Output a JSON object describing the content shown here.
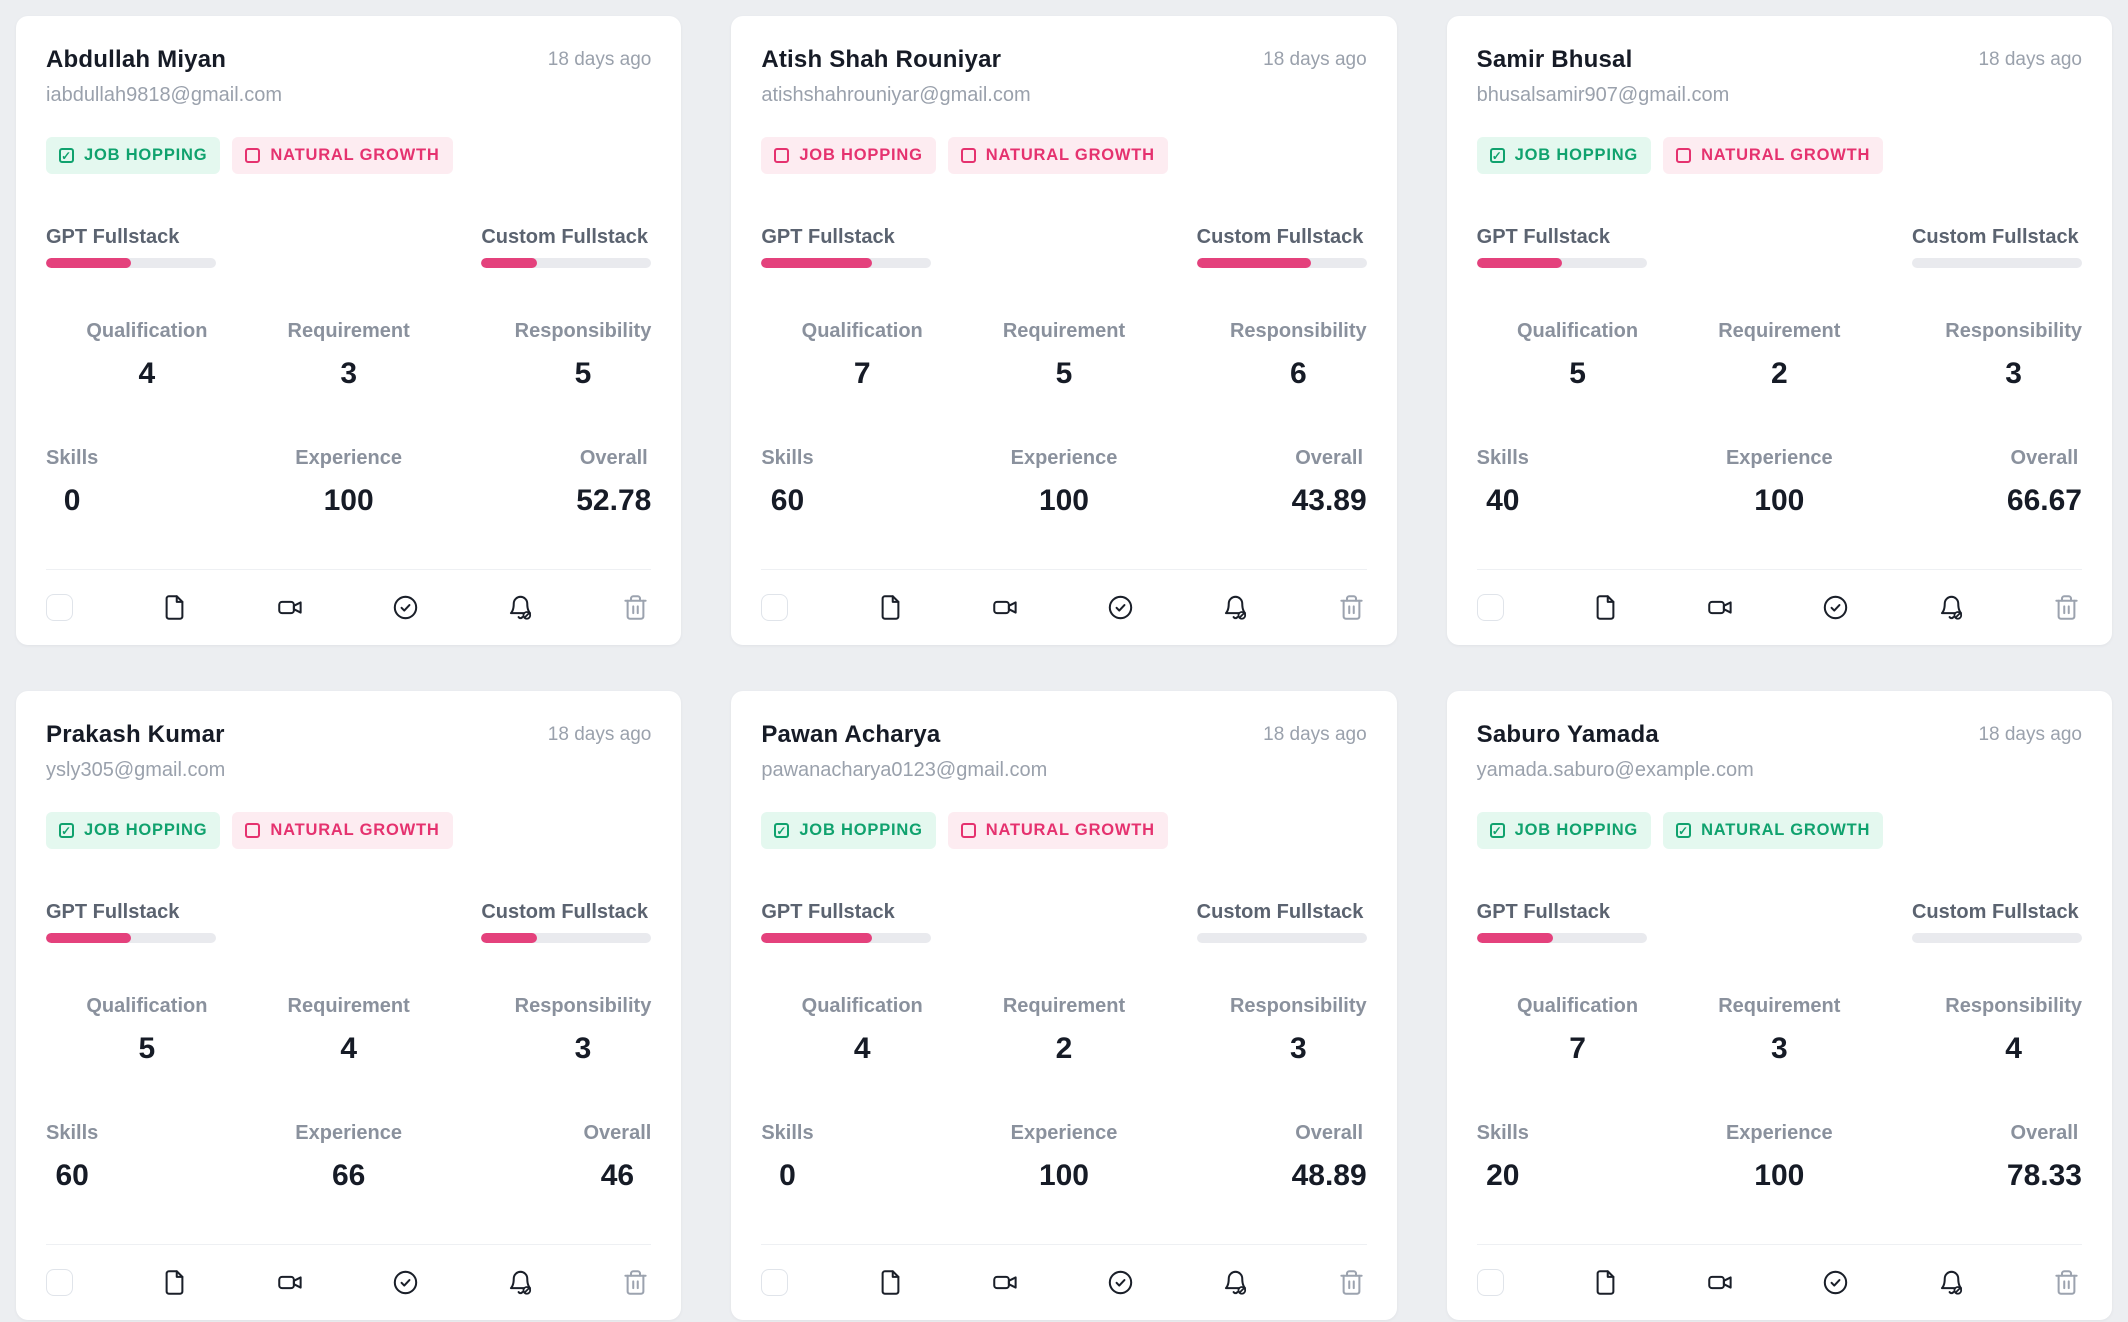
{
  "page": {
    "background": "#eceef1",
    "card_background": "#ffffff"
  },
  "colors": {
    "accent_pink": "#e4417c",
    "badge_green_text": "#10a26e",
    "badge_green_bg": "#e4f8ef",
    "badge_pink_text": "#e5326f",
    "badge_pink_bg": "#fdecf1",
    "bar_track": "#e9eaee"
  },
  "labels": {
    "gpt_bar": "GPT Fullstack",
    "custom_bar": "Custom Fullstack",
    "stats": {
      "qualification": "Qualification",
      "requirement": "Requirement",
      "responsibility": "Responsibility",
      "skills": "Skills",
      "experience": "Experience",
      "overall": "Overall"
    }
  },
  "footer_icons": [
    "select-checkbox",
    "file",
    "video",
    "check-circle",
    "bell-off",
    "trash"
  ],
  "cards": [
    {
      "name": "Abdullah Miyan",
      "email": "iabdullah9818@gmail.com",
      "time": "18 days ago",
      "badges": [
        {
          "label": "JOB HOPPING",
          "variant": "green",
          "checked": true
        },
        {
          "label": "NATURAL GROWTH",
          "variant": "pink",
          "checked": false
        }
      ],
      "bars": {
        "gpt": 50,
        "custom": 33
      },
      "stats": {
        "qualification": "4",
        "requirement": "3",
        "responsibility": "5",
        "skills": "0",
        "experience": "100",
        "overall": "52.78"
      }
    },
    {
      "name": "Atish Shah Rouniyar",
      "email": "atishshahrouniyar@gmail.com",
      "time": "18 days ago",
      "badges": [
        {
          "label": "JOB HOPPING",
          "variant": "pink",
          "checked": false
        },
        {
          "label": "NATURAL GROWTH",
          "variant": "pink",
          "checked": false
        }
      ],
      "bars": {
        "gpt": 65,
        "custom": 67
      },
      "stats": {
        "qualification": "7",
        "requirement": "5",
        "responsibility": "6",
        "skills": "60",
        "experience": "100",
        "overall": "43.89"
      }
    },
    {
      "name": "Samir Bhusal",
      "email": "bhusalsamir907@gmail.com",
      "time": "18 days ago",
      "badges": [
        {
          "label": "JOB HOPPING",
          "variant": "green",
          "checked": true
        },
        {
          "label": "NATURAL GROWTH",
          "variant": "pink",
          "checked": false
        }
      ],
      "bars": {
        "gpt": 50,
        "custom": 0
      },
      "stats": {
        "qualification": "5",
        "requirement": "2",
        "responsibility": "3",
        "skills": "40",
        "experience": "100",
        "overall": "66.67"
      }
    },
    {
      "name": "Prakash Kumar",
      "email": "ysly305@gmail.com",
      "time": "18 days ago",
      "badges": [
        {
          "label": "JOB HOPPING",
          "variant": "green",
          "checked": true
        },
        {
          "label": "NATURAL GROWTH",
          "variant": "pink",
          "checked": false
        }
      ],
      "bars": {
        "gpt": 50,
        "custom": 33
      },
      "stats": {
        "qualification": "5",
        "requirement": "4",
        "responsibility": "3",
        "skills": "60",
        "experience": "66",
        "overall": "46"
      }
    },
    {
      "name": "Pawan Acharya",
      "email": "pawanacharya0123@gmail.com",
      "time": "18 days ago",
      "badges": [
        {
          "label": "JOB HOPPING",
          "variant": "green",
          "checked": true
        },
        {
          "label": "NATURAL GROWTH",
          "variant": "pink",
          "checked": false
        }
      ],
      "bars": {
        "gpt": 65,
        "custom": 0
      },
      "stats": {
        "qualification": "4",
        "requirement": "2",
        "responsibility": "3",
        "skills": "0",
        "experience": "100",
        "overall": "48.89"
      }
    },
    {
      "name": "Saburo Yamada",
      "email": "yamada.saburo@example.com",
      "time": "18 days ago",
      "badges": [
        {
          "label": "JOB HOPPING",
          "variant": "green",
          "checked": true
        },
        {
          "label": "NATURAL GROWTH",
          "variant": "green",
          "checked": true
        }
      ],
      "bars": {
        "gpt": 45,
        "custom": 0
      },
      "stats": {
        "qualification": "7",
        "requirement": "3",
        "responsibility": "4",
        "skills": "20",
        "experience": "100",
        "overall": "78.33"
      }
    }
  ]
}
